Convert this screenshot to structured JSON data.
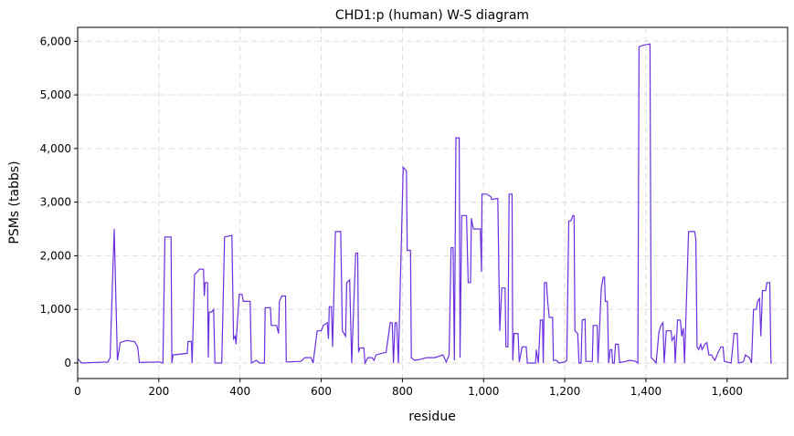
{
  "chart_data": {
    "type": "line",
    "title": "CHD1:p (human) W-S diagram",
    "xlabel": "residue",
    "ylabel": "PSMs (tabbs)",
    "xlim": [
      0,
      1749
    ],
    "ylim": [
      -290,
      6260
    ],
    "grid": true,
    "x_ticks": [
      0,
      200,
      400,
      600,
      800,
      1000,
      1200,
      1400,
      1600
    ],
    "x_tick_labels": [
      "0",
      "200",
      "400",
      "600",
      "800",
      "1,000",
      "1,200",
      "1,400",
      "1,600"
    ],
    "y_ticks": [
      0,
      1000,
      2000,
      3000,
      4000,
      5000,
      6000
    ],
    "y_tick_labels": [
      "0",
      "1,000",
      "2,000",
      "3,000",
      "4,000",
      "5,000",
      "6,000"
    ],
    "line_color": "#6a30e0",
    "series": [
      {
        "name": "PSMs",
        "points": [
          [
            0,
            80
          ],
          [
            10,
            0
          ],
          [
            75,
            20
          ],
          [
            80,
            100
          ],
          [
            82,
            580
          ],
          [
            90,
            2500
          ],
          [
            98,
            50
          ],
          [
            105,
            380
          ],
          [
            120,
            420
          ],
          [
            140,
            400
          ],
          [
            148,
            300
          ],
          [
            152,
            10
          ],
          [
            200,
            20
          ],
          [
            210,
            0
          ],
          [
            215,
            2350
          ],
          [
            230,
            2350
          ],
          [
            232,
            0
          ],
          [
            235,
            150
          ],
          [
            270,
            180
          ],
          [
            272,
            400
          ],
          [
            280,
            400
          ],
          [
            282,
            0
          ],
          [
            288,
            1650
          ],
          [
            295,
            1700
          ],
          [
            300,
            1750
          ],
          [
            310,
            1750
          ],
          [
            312,
            1250
          ],
          [
            314,
            1500
          ],
          [
            320,
            1500
          ],
          [
            322,
            100
          ],
          [
            324,
            950
          ],
          [
            330,
            950
          ],
          [
            335,
            1000
          ],
          [
            338,
            0
          ],
          [
            355,
            0
          ],
          [
            362,
            2350
          ],
          [
            380,
            2380
          ],
          [
            384,
            450
          ],
          [
            388,
            500
          ],
          [
            390,
            350
          ],
          [
            398,
            1280
          ],
          [
            405,
            1280
          ],
          [
            408,
            1150
          ],
          [
            425,
            1150
          ],
          [
            428,
            0
          ],
          [
            440,
            50
          ],
          [
            448,
            0
          ],
          [
            460,
            0
          ],
          [
            462,
            1030
          ],
          [
            475,
            1030
          ],
          [
            477,
            700
          ],
          [
            490,
            700
          ],
          [
            495,
            550
          ],
          [
            497,
            1150
          ],
          [
            503,
            1250
          ],
          [
            512,
            1250
          ],
          [
            514,
            20
          ],
          [
            550,
            30
          ],
          [
            560,
            100
          ],
          [
            575,
            100
          ],
          [
            580,
            0
          ],
          [
            590,
            600
          ],
          [
            600,
            600
          ],
          [
            605,
            700
          ],
          [
            615,
            750
          ],
          [
            618,
            450
          ],
          [
            620,
            1050
          ],
          [
            625,
            1050
          ],
          [
            628,
            300
          ],
          [
            635,
            2450
          ],
          [
            648,
            2450
          ],
          [
            652,
            600
          ],
          [
            660,
            500
          ],
          [
            663,
            1500
          ],
          [
            670,
            1550
          ],
          [
            675,
            0
          ],
          [
            680,
            1050
          ],
          [
            685,
            2050
          ],
          [
            690,
            2050
          ],
          [
            692,
            200
          ],
          [
            695,
            280
          ],
          [
            705,
            280
          ],
          [
            708,
            0
          ],
          [
            715,
            100
          ],
          [
            725,
            100
          ],
          [
            730,
            50
          ],
          [
            735,
            150
          ],
          [
            760,
            200
          ],
          [
            770,
            750
          ],
          [
            775,
            750
          ],
          [
            778,
            0
          ],
          [
            782,
            750
          ],
          [
            786,
            750
          ],
          [
            790,
            0
          ],
          [
            802,
            3650
          ],
          [
            810,
            3580
          ],
          [
            812,
            2100
          ],
          [
            820,
            2100
          ],
          [
            822,
            100
          ],
          [
            830,
            50
          ],
          [
            840,
            60
          ],
          [
            860,
            100
          ],
          [
            880,
            100
          ],
          [
            900,
            150
          ],
          [
            908,
            20
          ],
          [
            915,
            150
          ],
          [
            920,
            2150
          ],
          [
            925,
            2150
          ],
          [
            928,
            50
          ],
          [
            932,
            4200
          ],
          [
            940,
            4200
          ],
          [
            942,
            100
          ],
          [
            946,
            2750
          ],
          [
            958,
            2750
          ],
          [
            962,
            1500
          ],
          [
            968,
            1500
          ],
          [
            970,
            2700
          ],
          [
            975,
            2500
          ],
          [
            992,
            2500
          ],
          [
            995,
            1700
          ],
          [
            996,
            3150
          ],
          [
            1008,
            3150
          ],
          [
            1018,
            3100
          ],
          [
            1020,
            3050
          ],
          [
            1035,
            3070
          ],
          [
            1040,
            600
          ],
          [
            1045,
            1400
          ],
          [
            1053,
            1400
          ],
          [
            1055,
            300
          ],
          [
            1060,
            300
          ],
          [
            1063,
            3150
          ],
          [
            1070,
            3150
          ],
          [
            1072,
            50
          ],
          [
            1075,
            550
          ],
          [
            1085,
            550
          ],
          [
            1088,
            20
          ],
          [
            1095,
            300
          ],
          [
            1105,
            300
          ],
          [
            1108,
            0
          ],
          [
            1128,
            0
          ],
          [
            1130,
            250
          ],
          [
            1135,
            0
          ],
          [
            1140,
            800
          ],
          [
            1145,
            800
          ],
          [
            1147,
            0
          ],
          [
            1150,
            1500
          ],
          [
            1155,
            1500
          ],
          [
            1158,
            1150
          ],
          [
            1162,
            850
          ],
          [
            1170,
            850
          ],
          [
            1172,
            50
          ],
          [
            1180,
            50
          ],
          [
            1185,
            0
          ],
          [
            1200,
            20
          ],
          [
            1205,
            50
          ],
          [
            1210,
            2650
          ],
          [
            1215,
            2650
          ],
          [
            1220,
            2750
          ],
          [
            1223,
            2750
          ],
          [
            1225,
            600
          ],
          [
            1232,
            550
          ],
          [
            1235,
            0
          ],
          [
            1240,
            0
          ],
          [
            1243,
            800
          ],
          [
            1250,
            820
          ],
          [
            1252,
            30
          ],
          [
            1268,
            30
          ],
          [
            1270,
            700
          ],
          [
            1280,
            700
          ],
          [
            1282,
            0
          ],
          [
            1290,
            1400
          ],
          [
            1295,
            1600
          ],
          [
            1298,
            1600
          ],
          [
            1300,
            1150
          ],
          [
            1305,
            1150
          ],
          [
            1308,
            0
          ],
          [
            1312,
            250
          ],
          [
            1316,
            250
          ],
          [
            1318,
            0
          ],
          [
            1322,
            0
          ],
          [
            1325,
            350
          ],
          [
            1332,
            350
          ],
          [
            1335,
            10
          ],
          [
            1345,
            20
          ],
          [
            1360,
            50
          ],
          [
            1375,
            30
          ],
          [
            1380,
            0
          ],
          [
            1383,
            5900
          ],
          [
            1395,
            5930
          ],
          [
            1410,
            5950
          ],
          [
            1413,
            100
          ],
          [
            1420,
            50
          ],
          [
            1425,
            0
          ],
          [
            1432,
            580
          ],
          [
            1437,
            700
          ],
          [
            1442,
            750
          ],
          [
            1445,
            0
          ],
          [
            1450,
            600
          ],
          [
            1462,
            600
          ],
          [
            1464,
            420
          ],
          [
            1470,
            500
          ],
          [
            1472,
            0
          ],
          [
            1478,
            800
          ],
          [
            1485,
            800
          ],
          [
            1488,
            500
          ],
          [
            1492,
            650
          ],
          [
            1495,
            0
          ],
          [
            1505,
            2450
          ],
          [
            1520,
            2450
          ],
          [
            1523,
            2300
          ],
          [
            1526,
            300
          ],
          [
            1530,
            250
          ],
          [
            1535,
            350
          ],
          [
            1538,
            250
          ],
          [
            1545,
            350
          ],
          [
            1550,
            380
          ],
          [
            1555,
            150
          ],
          [
            1562,
            150
          ],
          [
            1565,
            100
          ],
          [
            1570,
            50
          ],
          [
            1578,
            200
          ],
          [
            1585,
            300
          ],
          [
            1590,
            300
          ],
          [
            1593,
            30
          ],
          [
            1610,
            0
          ],
          [
            1617,
            550
          ],
          [
            1625,
            550
          ],
          [
            1628,
            0
          ],
          [
            1640,
            20
          ],
          [
            1645,
            150
          ],
          [
            1655,
            100
          ],
          [
            1660,
            0
          ],
          [
            1665,
            1000
          ],
          [
            1672,
            1000
          ],
          [
            1675,
            1150
          ],
          [
            1680,
            1200
          ],
          [
            1683,
            500
          ],
          [
            1687,
            1350
          ],
          [
            1695,
            1350
          ],
          [
            1698,
            1500
          ],
          [
            1705,
            1500
          ],
          [
            1708,
            0
          ],
          [
            1710,
            0
          ]
        ]
      }
    ]
  }
}
